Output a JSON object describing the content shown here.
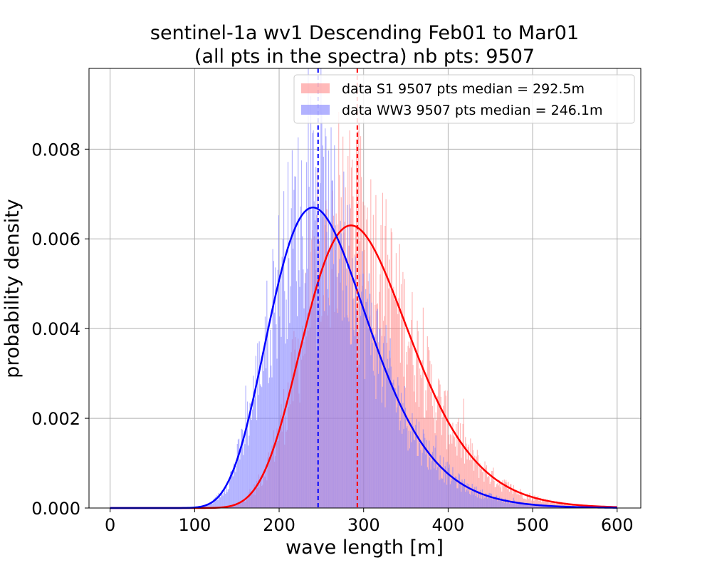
{
  "chart_data": {
    "type": "histogram",
    "title_line1": "sentinel-1a wv1 Descending Feb01 to Mar01",
    "title_line2": "(all pts in the spectra) nb pts: 9507",
    "xlabel": "wave length [m]",
    "ylabel": "probability density",
    "xlim": [
      -25,
      628
    ],
    "ylim": [
      0,
      0.0098
    ],
    "xticks": [
      0,
      100,
      200,
      300,
      400,
      500,
      600
    ],
    "xtick_labels": [
      "0",
      "100",
      "200",
      "300",
      "400",
      "500",
      "600"
    ],
    "yticks": [
      0,
      0.002,
      0.004,
      0.006,
      0.008
    ],
    "ytick_labels": [
      "0.000",
      "0.002",
      "0.004",
      "0.006",
      "0.008"
    ],
    "grid": true,
    "legend_position": "top-right",
    "bin_width_m": 1,
    "series": [
      {
        "name": "data S1 9507 pts median = 292.5m",
        "color": "#ff7f7f",
        "opacity": 0.55,
        "fit": {
          "type": "lognormal",
          "mode": 285,
          "peak": 0.0063,
          "color": "#ff0000"
        },
        "median": 292.5,
        "median_color": "#ff0000"
      },
      {
        "name": "data WW3 9507 pts median = 246.1m",
        "color": "#7f7fff",
        "opacity": 0.6,
        "fit": {
          "type": "lognormal",
          "mode": 240,
          "peak": 0.0067,
          "color": "#0000ff"
        },
        "median": 246.1,
        "median_color": "#0000ff"
      }
    ]
  }
}
